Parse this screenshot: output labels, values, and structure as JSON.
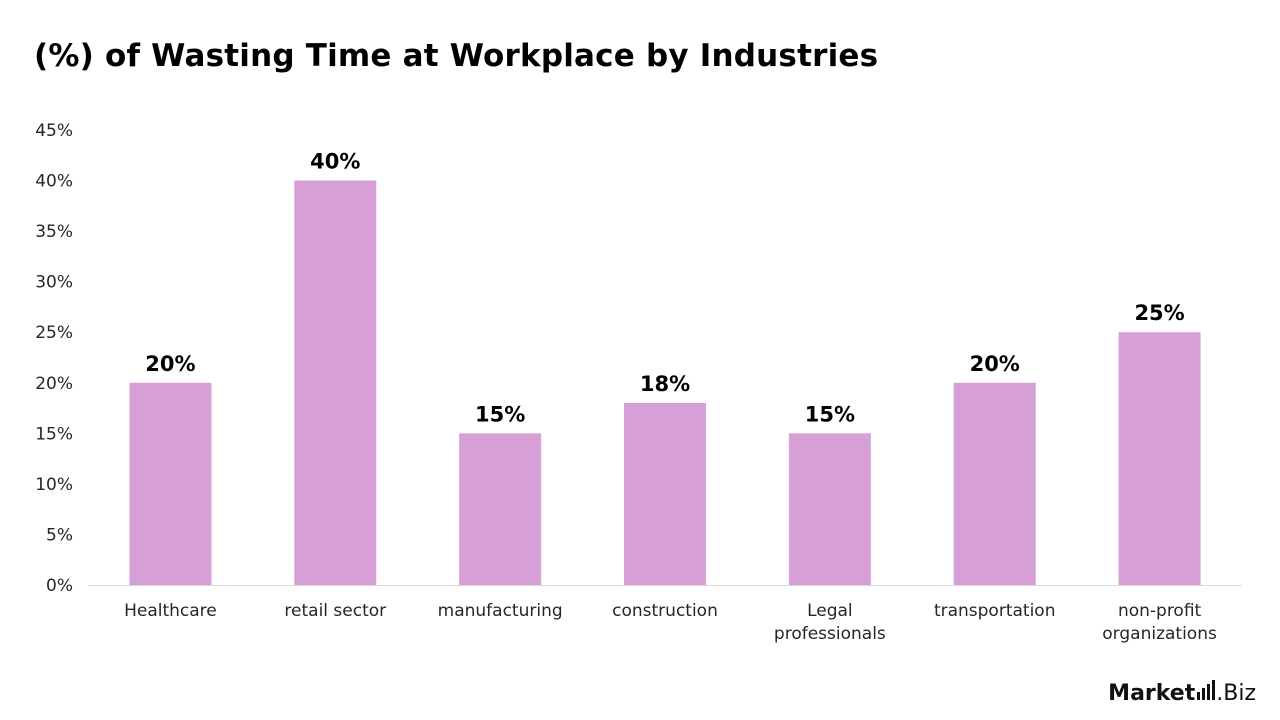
{
  "chart_data": {
    "type": "bar",
    "title": "(%) of Wasting Time at Workplace by Industries",
    "xlabel": "",
    "ylabel": "",
    "categories": [
      [
        "Healthcare"
      ],
      [
        "retail sector"
      ],
      [
        "manufacturing"
      ],
      [
        "construction"
      ],
      [
        "Legal",
        "professionals"
      ],
      [
        "transportation"
      ],
      [
        "non-profit",
        "organizations"
      ]
    ],
    "values": [
      20,
      40,
      15,
      18,
      15,
      20,
      25
    ],
    "value_labels": [
      "20%",
      "40%",
      "15%",
      "18%",
      "15%",
      "20%",
      "25%"
    ],
    "ylim": [
      0,
      45
    ],
    "yticks": [
      0,
      5,
      10,
      15,
      20,
      25,
      30,
      35,
      40,
      45
    ],
    "ytick_labels": [
      "0%",
      "5%",
      "10%",
      "15%",
      "20%",
      "25%",
      "30%",
      "35%",
      "40%",
      "45%"
    ],
    "bar_color": "#d6a0d6",
    "grid": false,
    "legend": "none"
  },
  "brand": {
    "main": "Market",
    "suffix": ".Biz"
  }
}
